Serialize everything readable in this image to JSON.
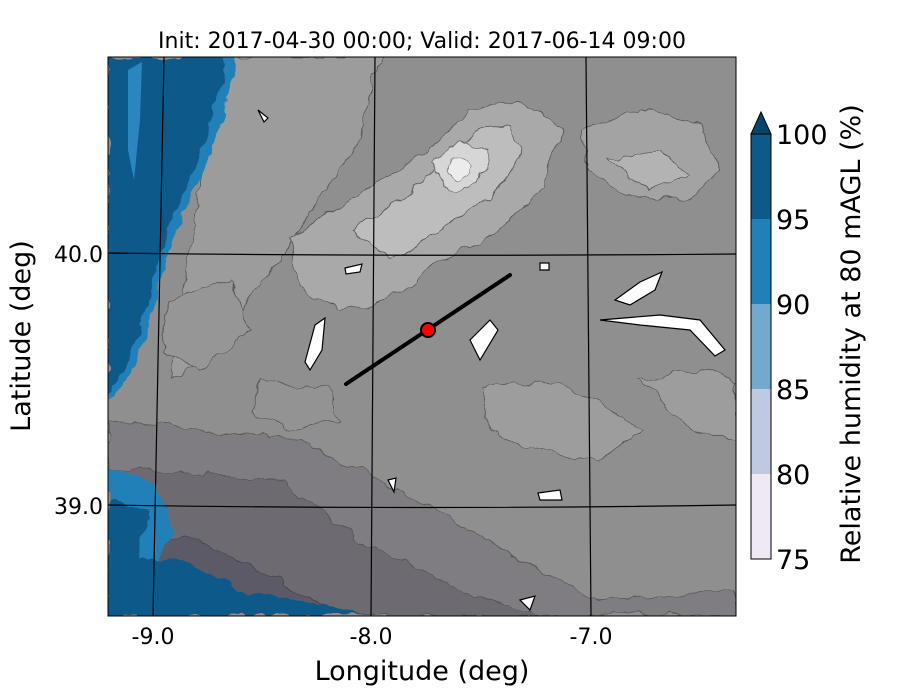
{
  "title": "Init: 2017-04-30 00:00; Valid: 2017-06-14 09:00",
  "xlabel": "Longitude (deg)",
  "ylabel": "Latitude (deg)",
  "colorbar": {
    "label": "Relative humidity at 80 mAGL (%)",
    "ticks": [
      "75",
      "80",
      "85",
      "90",
      "95",
      "100"
    ],
    "levels": [
      {
        "range": [
          75,
          80
        ],
        "color": "#efe9f4"
      },
      {
        "range": [
          80,
          85
        ],
        "color": "#bfc9e2"
      },
      {
        "range": [
          85,
          90
        ],
        "color": "#74a9cf"
      },
      {
        "range": [
          90,
          95
        ],
        "color": "#2280b8"
      },
      {
        "range": [
          95,
          100
        ],
        "color": "#0b5a8a"
      },
      {
        "range": [
          100,
          null
        ],
        "color": "#08456b"
      }
    ],
    "extend": "max"
  },
  "x_ticks": [
    "-9.0",
    "-8.0",
    "-7.0"
  ],
  "y_ticks": [
    "40.0",
    "39.0"
  ],
  "site_marker": {
    "lon": -7.75,
    "lat": 39.68,
    "color": "#ff0000"
  },
  "transect": {
    "start": {
      "lon": -8.13,
      "lat": 39.48
    },
    "end": {
      "lon": -7.37,
      "lat": 39.93
    }
  },
  "colors": {
    "land_mid": "#8f8f8f",
    "land_light": "#b9b9b9",
    "land_peak": "#e9e9e9",
    "sea": "#0b5a8a"
  }
}
